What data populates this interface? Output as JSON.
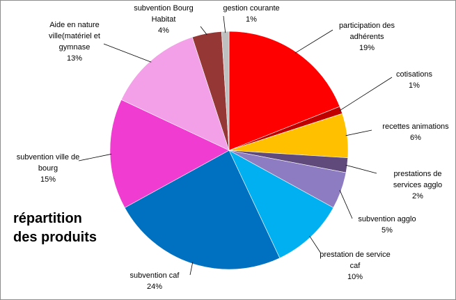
{
  "chart_data": {
    "type": "pie",
    "title": "répartition des produits",
    "title_lines": [
      "répartition",
      "des produits"
    ],
    "legend": "none",
    "slices": [
      {
        "label_lines": [
          "participation des",
          "adhérents"
        ],
        "label": "participation des adhérents",
        "value": 19,
        "value_label": "19%",
        "color": "#ff0000"
      },
      {
        "label_lines": [
          "cotisations"
        ],
        "label": "cotisations",
        "value": 1,
        "value_label": "1%",
        "color": "#c00000"
      },
      {
        "label_lines": [
          "recettes  animations"
        ],
        "label": "recettes  animations",
        "value": 6,
        "value_label": "6%",
        "color": "#ffc000"
      },
      {
        "label_lines": [
          "prestations de",
          "services agglo"
        ],
        "label": "prestations de services agglo",
        "value": 2,
        "value_label": "2%",
        "color": "#604a7b"
      },
      {
        "label_lines": [
          "subvention agglo"
        ],
        "label": "subvention agglo",
        "value": 5,
        "value_label": "5%",
        "color": "#8e7cc3"
      },
      {
        "label_lines": [
          "prestation de service",
          "caf"
        ],
        "label": "prestation de service caf",
        "value": 10,
        "value_label": "10%",
        "color": "#00b0f0"
      },
      {
        "label_lines": [
          "subvention caf"
        ],
        "label": "subvention caf",
        "value": 24,
        "value_label": "24%",
        "color": "#0070c0"
      },
      {
        "label_lines": [
          "subvention ville de",
          "bourg"
        ],
        "label": "subvention ville de bourg",
        "value": 15,
        "value_label": "15%",
        "color": "#f03cd0"
      },
      {
        "label_lines": [
          "Aide en nature",
          "ville(matériel et",
          "gymnase"
        ],
        "label": "Aide en nature ville(matériel et gymnase",
        "value": 13,
        "value_label": "13%",
        "color": "#f4a0e8"
      },
      {
        "label_lines": [
          "subvention Bourg",
          "Habitat"
        ],
        "label": "subvention Bourg Habitat",
        "value": 4,
        "value_label": "4%",
        "color": "#953735"
      },
      {
        "label_lines": [
          "gestion courante"
        ],
        "label": "gestion courante",
        "value": 1,
        "value_label": "1%",
        "color": "#bfbfbf"
      }
    ]
  }
}
